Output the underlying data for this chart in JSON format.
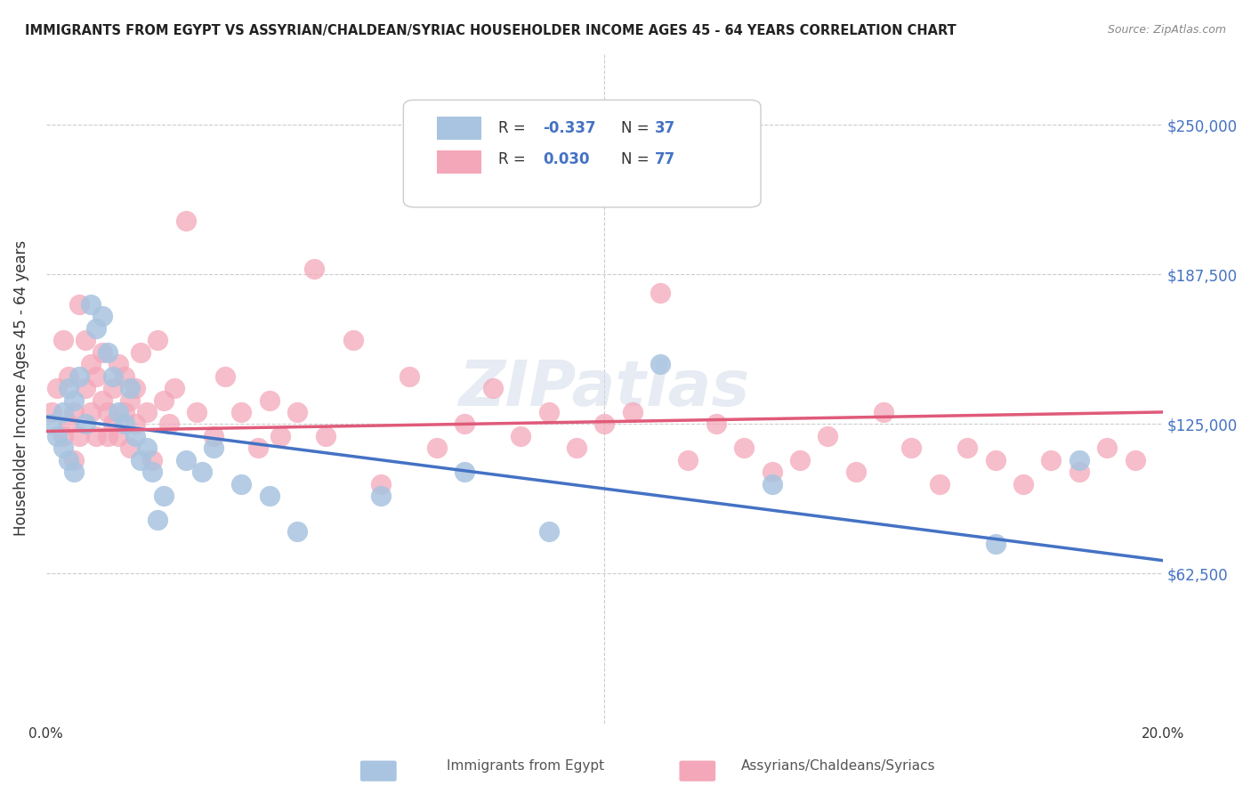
{
  "title": "IMMIGRANTS FROM EGYPT VS ASSYRIAN/CHALDEAN/SYRIAC HOUSEHOLDER INCOME AGES 45 - 64 YEARS CORRELATION CHART",
  "source": "Source: ZipAtlas.com",
  "xlabel_bottom": "",
  "ylabel": "Householder Income Ages 45 - 64 years",
  "xlim": [
    0.0,
    0.2
  ],
  "ylim": [
    0,
    280000
  ],
  "yticks": [
    0,
    62500,
    125000,
    187500,
    250000
  ],
  "ytick_labels": [
    "",
    "$62,500",
    "$125,000",
    "$187,500",
    "$250,000"
  ],
  "xticks": [
    0.0,
    0.04,
    0.08,
    0.12,
    0.16,
    0.2
  ],
  "xtick_labels": [
    "0.0%",
    "",
    "",
    "",
    "",
    "20.0%"
  ],
  "legend_R1": "R = -0.337",
  "legend_N1": "N = 37",
  "legend_R2": "R =  0.030",
  "legend_N2": "N = 77",
  "color_egypt": "#a8c4e0",
  "color_assyrian": "#f4a7b9",
  "color_line_egypt": "#4472c4",
  "color_line_assyrian": "#e05a7a",
  "watermark": "ZIPatlas",
  "watermark_color": "#d0d8e8",
  "egypt_x": [
    0.001,
    0.002,
    0.003,
    0.003,
    0.004,
    0.004,
    0.005,
    0.005,
    0.006,
    0.007,
    0.008,
    0.009,
    0.01,
    0.011,
    0.012,
    0.013,
    0.014,
    0.015,
    0.016,
    0.017,
    0.018,
    0.019,
    0.02,
    0.021,
    0.025,
    0.028,
    0.03,
    0.035,
    0.04,
    0.045,
    0.06,
    0.075,
    0.09,
    0.11,
    0.13,
    0.17,
    0.185
  ],
  "egypt_y": [
    125000,
    120000,
    130000,
    115000,
    140000,
    110000,
    135000,
    105000,
    145000,
    125000,
    175000,
    165000,
    170000,
    155000,
    145000,
    130000,
    125000,
    140000,
    120000,
    110000,
    115000,
    105000,
    85000,
    95000,
    110000,
    105000,
    115000,
    100000,
    95000,
    80000,
    95000,
    105000,
    80000,
    150000,
    100000,
    75000,
    110000
  ],
  "assyrian_x": [
    0.001,
    0.002,
    0.003,
    0.003,
    0.004,
    0.004,
    0.005,
    0.005,
    0.006,
    0.006,
    0.007,
    0.007,
    0.008,
    0.008,
    0.009,
    0.009,
    0.01,
    0.01,
    0.011,
    0.011,
    0.012,
    0.012,
    0.013,
    0.013,
    0.014,
    0.014,
    0.015,
    0.015,
    0.016,
    0.016,
    0.017,
    0.018,
    0.019,
    0.02,
    0.021,
    0.022,
    0.023,
    0.025,
    0.027,
    0.03,
    0.032,
    0.035,
    0.038,
    0.04,
    0.042,
    0.045,
    0.048,
    0.05,
    0.055,
    0.06,
    0.065,
    0.07,
    0.075,
    0.08,
    0.085,
    0.09,
    0.095,
    0.1,
    0.105,
    0.11,
    0.115,
    0.12,
    0.125,
    0.13,
    0.135,
    0.14,
    0.145,
    0.15,
    0.155,
    0.16,
    0.165,
    0.17,
    0.175,
    0.18,
    0.185,
    0.19,
    0.195
  ],
  "assyrian_y": [
    130000,
    140000,
    120000,
    160000,
    125000,
    145000,
    130000,
    110000,
    120000,
    175000,
    140000,
    160000,
    130000,
    150000,
    145000,
    120000,
    135000,
    155000,
    130000,
    120000,
    140000,
    125000,
    150000,
    120000,
    145000,
    130000,
    135000,
    115000,
    125000,
    140000,
    155000,
    130000,
    110000,
    160000,
    135000,
    125000,
    140000,
    210000,
    130000,
    120000,
    145000,
    130000,
    115000,
    135000,
    120000,
    130000,
    190000,
    120000,
    160000,
    100000,
    145000,
    115000,
    125000,
    140000,
    120000,
    130000,
    115000,
    125000,
    130000,
    180000,
    110000,
    125000,
    115000,
    105000,
    110000,
    120000,
    105000,
    130000,
    115000,
    100000,
    115000,
    110000,
    100000,
    110000,
    105000,
    115000,
    110000
  ]
}
